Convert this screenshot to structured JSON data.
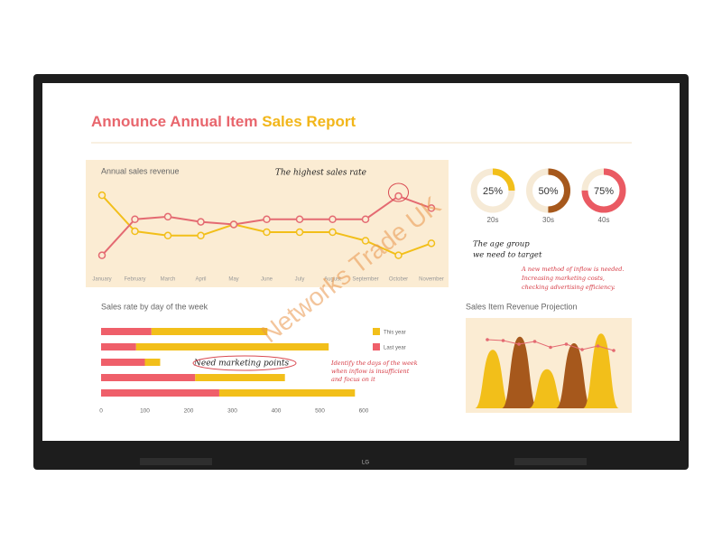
{
  "header": {
    "title_parts": [
      "Announce Annual Item",
      "Sales Report"
    ],
    "watermark": "Networks Trade UK",
    "brand": "LG"
  },
  "chart_data": [
    {
      "type": "line",
      "title": "Annual sales revenue",
      "annotation": "The highest sales rate",
      "categories": [
        "January",
        "February",
        "March",
        "April",
        "May",
        "June",
        "July",
        "August",
        "September",
        "October",
        "November"
      ],
      "series": [
        {
          "name": null,
          "color": "#f2bf1a",
          "values": [
            83,
            41,
            36,
            36,
            49,
            40,
            40,
            40,
            30,
            13,
            27
          ]
        },
        {
          "name": null,
          "color": "#e46a72",
          "values": [
            13,
            55,
            58,
            52,
            49,
            55,
            55,
            55,
            55,
            82,
            68
          ]
        }
      ],
      "ylim": [
        0,
        100
      ]
    },
    {
      "type": "donut",
      "categories": [
        "20s",
        "30s",
        "40s"
      ],
      "values": [
        25,
        50,
        75
      ],
      "value_labels": [
        "25%",
        "50%",
        "75%"
      ],
      "colors": [
        "#f2bf1a",
        "#a6581c",
        "#ea5a63"
      ],
      "annotation_lines": [
        "The age group",
        "we need to target"
      ],
      "note_lines": [
        "A new method of inflow is needed.",
        "Increasing marketing costs,",
        "checking advertising efficiency."
      ]
    },
    {
      "type": "hbar",
      "title": "Sales rate by day of the week",
      "categories": [
        null,
        null,
        null,
        null,
        null
      ],
      "series": [
        {
          "name": "Last year",
          "color": "#ef5f6a",
          "values": [
            115,
            80,
            100,
            215,
            270
          ]
        },
        {
          "name": "This year",
          "color": "#f2bf1a",
          "values": [
            265,
            440,
            35,
            205,
            310
          ]
        }
      ],
      "xlim": [
        0,
        600
      ],
      "xticks": [
        0,
        100,
        200,
        300,
        400,
        500,
        600
      ],
      "annotation": "Need marketing points",
      "note_lines": [
        "Identify the days of the week",
        "when inflow is insufficient",
        "and focus on it"
      ]
    },
    {
      "type": "projection",
      "title": "Sales Item Revenue Projection",
      "line": {
        "color": "#e46a72",
        "values": [
          72,
          70,
          62,
          68,
          55,
          62,
          50,
          58,
          48
        ]
      },
      "peaks": {
        "colors": [
          "#f2bf1a",
          "#a6581c",
          "#f2bf1a",
          "#a6581c",
          "#f2bf1a"
        ],
        "values": [
          72,
          88,
          48,
          80,
          92
        ]
      },
      "ylim": [
        0,
        100
      ]
    }
  ]
}
